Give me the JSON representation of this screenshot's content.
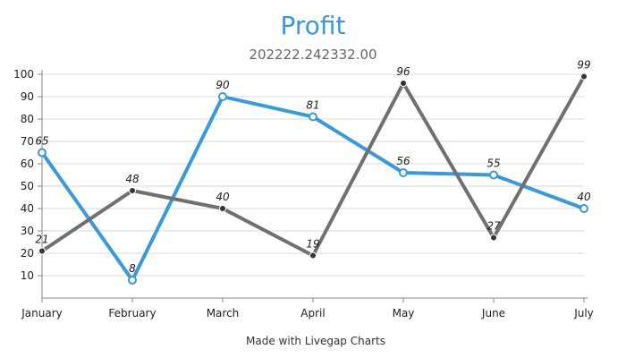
{
  "chart_data": {
    "type": "line",
    "title": "Profit",
    "subtitle": "202222.242332.00",
    "footer": "Made with Livegap Charts",
    "categories": [
      "January",
      "February",
      "March",
      "April",
      "May",
      "June",
      "July"
    ],
    "y_ticks": [
      10,
      20,
      30,
      40,
      50,
      60,
      70,
      80,
      90,
      100
    ],
    "ylim": [
      0,
      100
    ],
    "grid": true,
    "series": [
      {
        "values": [
          65,
          8,
          90,
          81,
          56,
          55,
          40
        ],
        "color": "#3a9ad9"
      },
      {
        "values": [
          21,
          48,
          40,
          19,
          96,
          27,
          99
        ],
        "color": "#707070"
      }
    ],
    "marker_colors": {
      "series_0": "#3a9ad9",
      "series_1": "#333333"
    }
  }
}
